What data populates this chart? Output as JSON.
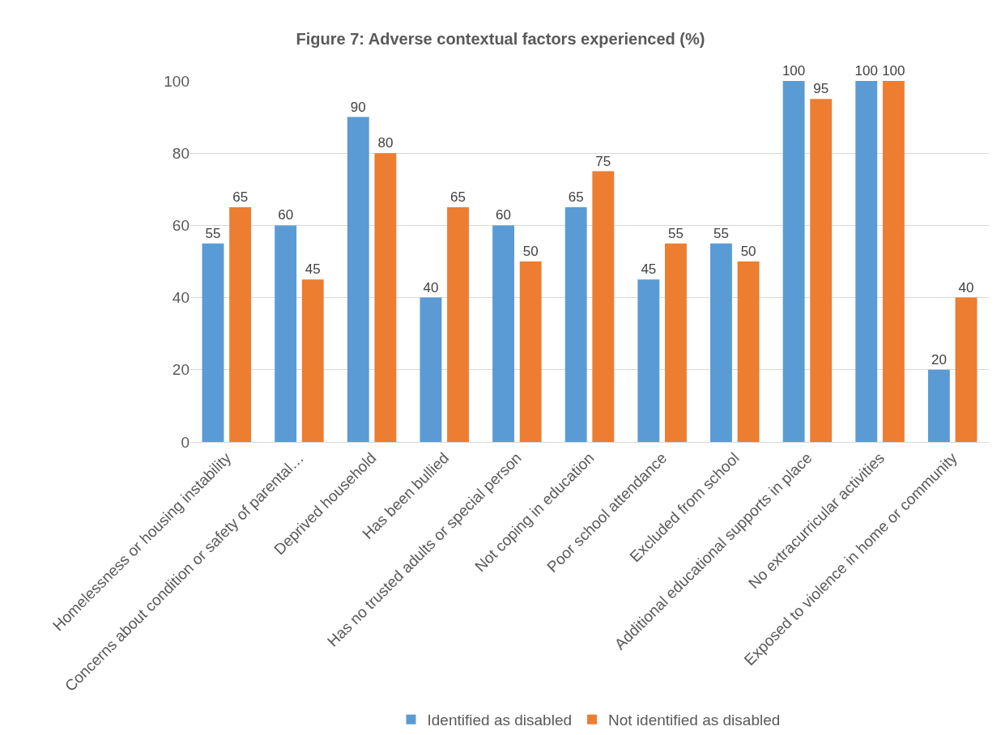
{
  "chart_data": {
    "type": "bar",
    "title": "Figure 7: Adverse contextual factors experienced (%)",
    "categories": [
      "Homelessness or housing instability",
      "Concerns about condition or safety of parental…",
      "Deprived household",
      "Has been bullied",
      "Has no trusted adults or special person",
      "Not coping in education",
      "Poor school attendance",
      "Excluded from school",
      "Additional educational supports in place",
      "No extracurricular activities",
      "Exposed to violence in home or community"
    ],
    "series": [
      {
        "name": "Identified as disabled",
        "color": "#5b9bd5",
        "values": [
          55,
          60,
          90,
          40,
          60,
          65,
          45,
          55,
          100,
          100,
          20
        ]
      },
      {
        "name": "Not identified as disabled",
        "color": "#ed7d31",
        "values": [
          65,
          45,
          80,
          65,
          50,
          75,
          55,
          50,
          95,
          100,
          40
        ]
      }
    ],
    "ylim": [
      0,
      100
    ],
    "yticks": [
      0,
      20,
      40,
      60,
      80,
      100
    ],
    "grid": "y",
    "legend": "bottom",
    "data_labels": true
  }
}
